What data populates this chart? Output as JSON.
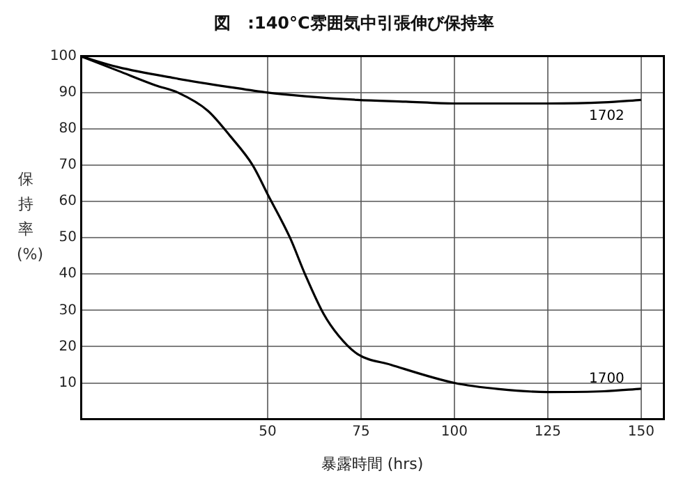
{
  "chart_data": {
    "type": "line",
    "title": "図　:140°C雰囲気中引張伸び保持率",
    "xlabel": "暴露時間 (hrs)",
    "ylabel": "保持率(%)",
    "xlim": [
      0,
      156
    ],
    "xticks": [
      50,
      75,
      100,
      125,
      150
    ],
    "ylim": [
      0,
      100
    ],
    "yticks": [
      10,
      20,
      30,
      40,
      50,
      60,
      70,
      80,
      90,
      100
    ],
    "grid": true,
    "legend": false,
    "marker": "none",
    "line_style": "solid",
    "series": [
      {
        "name": "1702",
        "color": "#000000",
        "x": [
          0,
          10,
          25,
          40,
          50,
          60,
          74,
          87,
          100,
          112,
          125,
          140,
          150
        ],
        "values": [
          100,
          97,
          94,
          91.5,
          90,
          89,
          88,
          87.5,
          87,
          87,
          87,
          87.3,
          88
        ]
      },
      {
        "name": "1700",
        "color": "#000000",
        "x": [
          0,
          10,
          20,
          26,
          34,
          40,
          46,
          50,
          56,
          60,
          65,
          69,
          74,
          83,
          100,
          112,
          125,
          140,
          150
        ],
        "values": [
          100,
          96,
          92,
          90,
          85,
          78,
          70,
          62,
          50,
          40,
          29,
          23,
          18,
          15,
          10,
          8.3,
          7.5,
          7.7,
          8.4
        ]
      }
    ]
  }
}
